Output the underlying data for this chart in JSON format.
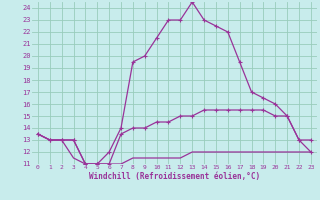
{
  "xlabel": "Windchill (Refroidissement éolien,°C)",
  "background_color": "#c8ecec",
  "grid_color": "#99ccbb",
  "line_color": "#993399",
  "hours": [
    0,
    1,
    2,
    3,
    4,
    5,
    6,
    7,
    8,
    9,
    10,
    11,
    12,
    13,
    14,
    15,
    16,
    17,
    18,
    19,
    20,
    21,
    22,
    23
  ],
  "temp": [
    13.5,
    13.0,
    13.0,
    13.0,
    11.0,
    11.0,
    12.0,
    14.0,
    19.5,
    20.0,
    21.5,
    23.0,
    23.0,
    24.5,
    23.0,
    22.5,
    22.0,
    19.5,
    17.0,
    16.5,
    16.0,
    15.0,
    13.0,
    13.0
  ],
  "windchill": [
    13.5,
    13.0,
    13.0,
    13.0,
    11.0,
    11.0,
    11.0,
    13.5,
    14.0,
    14.0,
    14.5,
    14.5,
    15.0,
    15.0,
    15.5,
    15.5,
    15.5,
    15.5,
    15.5,
    15.5,
    15.0,
    15.0,
    13.0,
    12.0
  ],
  "dewpoint": [
    13.5,
    13.0,
    13.0,
    11.5,
    11.0,
    11.0,
    11.0,
    11.0,
    11.5,
    11.5,
    11.5,
    11.5,
    11.5,
    12.0,
    12.0,
    12.0,
    12.0,
    12.0,
    12.0,
    12.0,
    12.0,
    12.0,
    12.0,
    12.0
  ],
  "ylim": [
    11,
    24.5
  ],
  "xlim": [
    -0.5,
    23.5
  ],
  "yticks": [
    11,
    12,
    13,
    14,
    15,
    16,
    17,
    18,
    19,
    20,
    21,
    22,
    23,
    24
  ],
  "xticks": [
    0,
    1,
    2,
    3,
    4,
    5,
    6,
    7,
    8,
    9,
    10,
    11,
    12,
    13,
    14,
    15,
    16,
    17,
    18,
    19,
    20,
    21,
    22,
    23
  ]
}
